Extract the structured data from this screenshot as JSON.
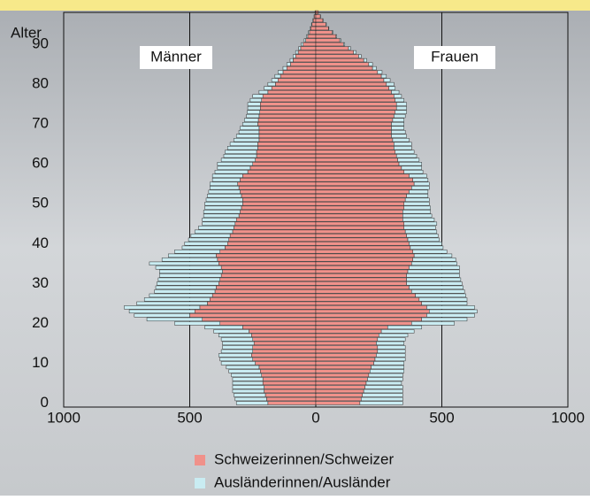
{
  "chart_data": {
    "type": "pyramid",
    "ylabel": "Alter",
    "left_label": "Männer",
    "right_label": "Frauen",
    "ages": [
      0,
      1,
      2,
      3,
      4,
      5,
      6,
      7,
      8,
      9,
      10,
      11,
      12,
      13,
      14,
      15,
      16,
      17,
      18,
      19,
      20,
      21,
      22,
      23,
      24,
      25,
      26,
      27,
      28,
      29,
      30,
      31,
      32,
      33,
      34,
      35,
      36,
      37,
      38,
      39,
      40,
      41,
      42,
      43,
      44,
      45,
      46,
      47,
      48,
      49,
      50,
      51,
      52,
      53,
      54,
      55,
      56,
      57,
      58,
      59,
      60,
      61,
      62,
      63,
      64,
      65,
      66,
      67,
      68,
      69,
      70,
      71,
      72,
      73,
      74,
      75,
      76,
      77,
      78,
      79,
      80,
      81,
      82,
      83,
      84,
      85,
      86,
      87,
      88,
      89,
      90,
      91,
      92,
      93,
      94,
      95,
      96,
      97,
      98
    ],
    "series": [
      {
        "name": "Schweizerinnen/Schweizer",
        "color": "#f0918a",
        "men": [
          190,
          195,
          200,
          205,
          205,
          210,
          210,
          215,
          220,
          225,
          240,
          250,
          255,
          250,
          250,
          245,
          250,
          255,
          265,
          290,
          380,
          450,
          500,
          480,
          460,
          430,
          420,
          410,
          400,
          395,
          385,
          380,
          375,
          370,
          375,
          385,
          390,
          395,
          380,
          360,
          350,
          345,
          340,
          330,
          325,
          320,
          315,
          305,
          300,
          295,
          290,
          290,
          295,
          300,
          305,
          310,
          300,
          290,
          270,
          260,
          250,
          240,
          235,
          235,
          230,
          230,
          225,
          225,
          225,
          225,
          230,
          228,
          225,
          222,
          220,
          220,
          215,
          210,
          190,
          175,
          160,
          150,
          140,
          130,
          115,
          100,
          90,
          80,
          70,
          60,
          50,
          40,
          32,
          25,
          20,
          15,
          10,
          6,
          3
        ],
        "women": [
          175,
          180,
          185,
          190,
          195,
          200,
          205,
          210,
          215,
          220,
          230,
          235,
          240,
          245,
          245,
          240,
          245,
          250,
          260,
          285,
          380,
          420,
          440,
          450,
          440,
          420,
          410,
          395,
          380,
          370,
          360,
          360,
          360,
          365,
          370,
          380,
          385,
          390,
          385,
          375,
          370,
          365,
          360,
          355,
          350,
          350,
          345,
          345,
          345,
          350,
          350,
          355,
          360,
          370,
          380,
          390,
          385,
          370,
          350,
          340,
          330,
          325,
          320,
          315,
          310,
          310,
          305,
          300,
          300,
          300,
          300,
          305,
          310,
          315,
          320,
          320,
          315,
          310,
          300,
          290,
          280,
          270,
          260,
          245,
          225,
          210,
          190,
          170,
          150,
          130,
          110,
          95,
          80,
          65,
          50,
          40,
          28,
          18,
          10
        ]
      },
      {
        "name": "Ausländerinnen/Ausländer",
        "color": "#c9ecf2",
        "men": [
          125,
          125,
          125,
          125,
          125,
          120,
          120,
          120,
          125,
          130,
          135,
          130,
          130,
          125,
          120,
          125,
          125,
          130,
          140,
          150,
          180,
          220,
          220,
          260,
          300,
          280,
          260,
          250,
          240,
          240,
          245,
          245,
          245,
          250,
          260,
          275,
          220,
          190,
          180,
          170,
          170,
          160,
          155,
          150,
          140,
          130,
          135,
          140,
          145,
          145,
          150,
          145,
          135,
          125,
          115,
          110,
          110,
          120,
          130,
          130,
          140,
          135,
          130,
          125,
          120,
          110,
          100,
          90,
          80,
          75,
          60,
          55,
          50,
          50,
          50,
          50,
          45,
          40,
          35,
          30,
          30,
          25,
          22,
          20,
          15,
          15,
          12,
          10,
          10,
          8,
          8,
          6,
          5,
          4,
          3,
          2,
          2,
          1,
          0
        ],
        "women": [
          170,
          165,
          160,
          155,
          150,
          140,
          140,
          135,
          135,
          130,
          120,
          120,
          115,
          110,
          110,
          110,
          110,
          115,
          130,
          135,
          170,
          180,
          190,
          190,
          190,
          180,
          190,
          200,
          210,
          215,
          220,
          215,
          210,
          205,
          200,
          180,
          170,
          150,
          135,
          130,
          130,
          125,
          125,
          125,
          125,
          130,
          125,
          115,
          110,
          105,
          100,
          95,
          85,
          75,
          70,
          60,
          60,
          70,
          75,
          80,
          90,
          85,
          80,
          75,
          70,
          70,
          65,
          60,
          55,
          50,
          50,
          45,
          45,
          45,
          40,
          40,
          35,
          30,
          30,
          25,
          30,
          25,
          20,
          18,
          15,
          15,
          12,
          10,
          10,
          8,
          5,
          4,
          3,
          3,
          2,
          2,
          1,
          1,
          0
        ]
      }
    ],
    "xlim": [
      -1000,
      1000
    ],
    "xticks": [
      {
        "value": -1000,
        "label": "1000"
      },
      {
        "value": -500,
        "label": "500"
      },
      0,
      500,
      1000
    ],
    "ylim": [
      -1,
      98
    ],
    "yticks": [
      0,
      10,
      20,
      30,
      40,
      50,
      60,
      70,
      80,
      90
    ],
    "grid": true
  }
}
